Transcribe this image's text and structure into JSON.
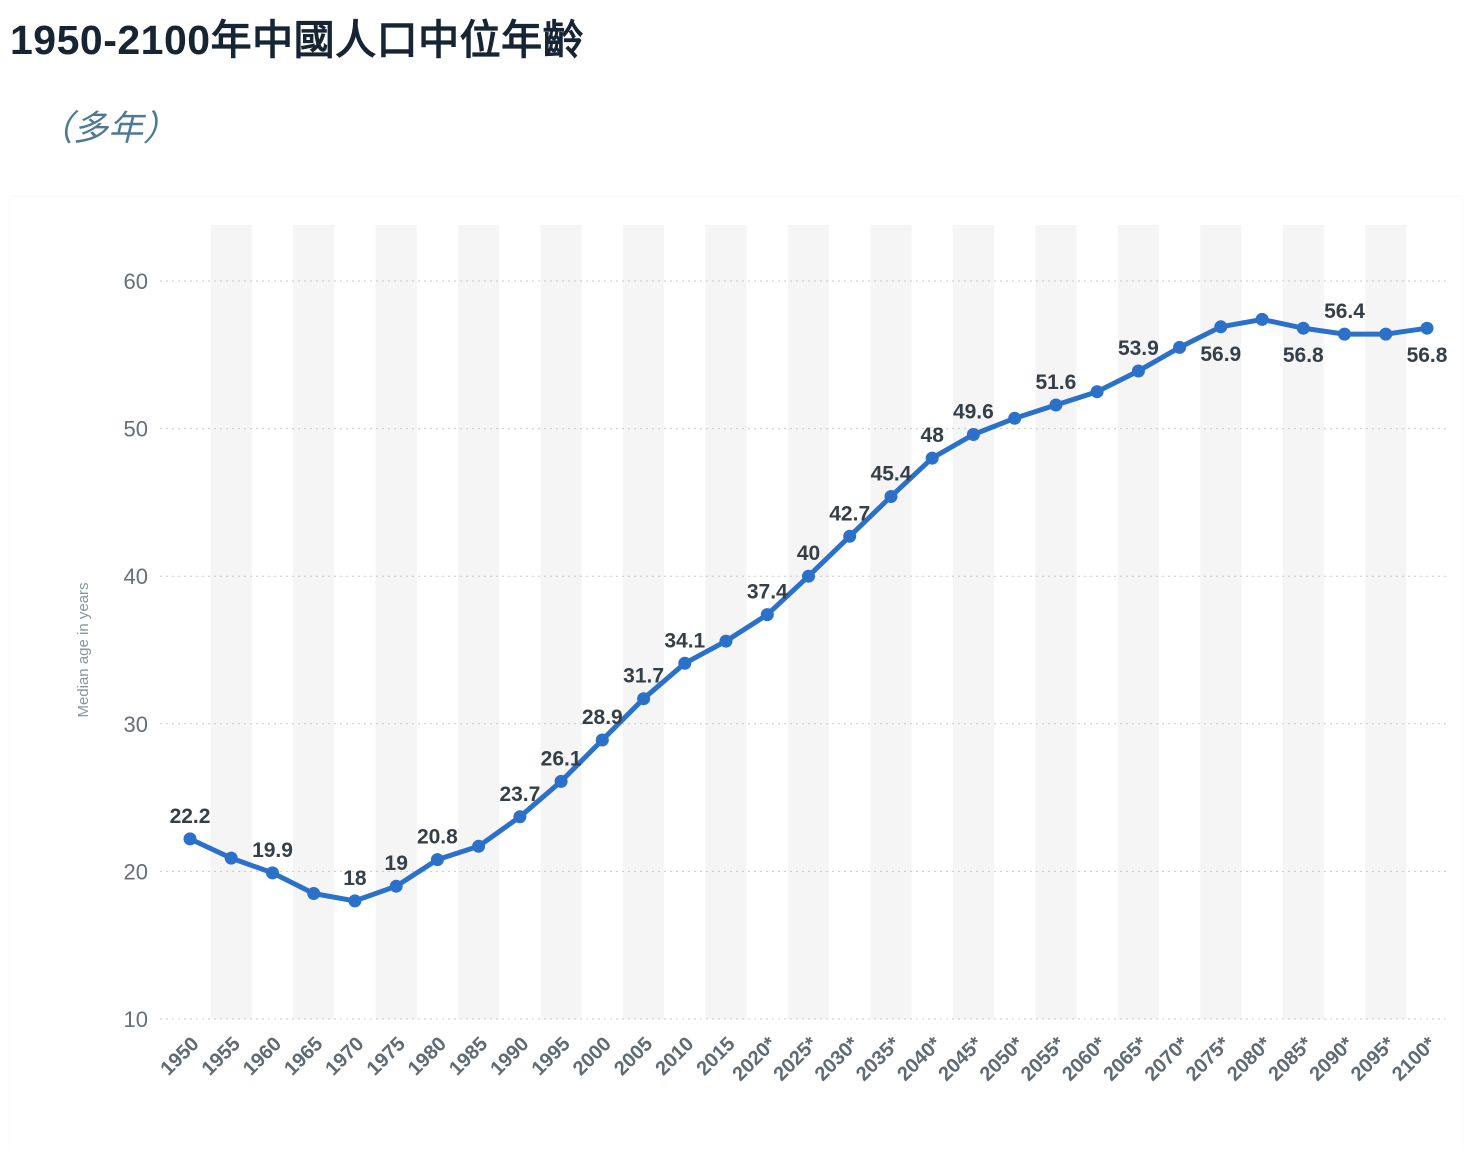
{
  "header": {
    "title": "1950-2100年中國人口中位年齡",
    "subtitle": "（多年）"
  },
  "chart_data": {
    "type": "line",
    "title": "1950-2100年中國人口中位年齡",
    "subtitle": "（多年）",
    "xlabel": "",
    "ylabel": "Median age in years",
    "ylim": [
      10,
      60
    ],
    "yticks": [
      10,
      20,
      30,
      40,
      50,
      60
    ],
    "grid": "horizontal-dotted",
    "legend": "none",
    "colors": {
      "line": "#2b70c9",
      "band": "#f5f5f5",
      "grid": "#c9c9c9",
      "ytick": "#666f76",
      "xtick": "#5f6a73",
      "point_label": "#353f48"
    },
    "points": [
      {
        "year": "1950",
        "value": 22.2,
        "label": "22.2",
        "label_pos": "above"
      },
      {
        "year": "1955",
        "value": 20.9
      },
      {
        "year": "1960",
        "value": 19.9,
        "label": "19.9",
        "label_pos": "above"
      },
      {
        "year": "1965",
        "value": 18.5
      },
      {
        "year": "1970",
        "value": 18,
        "label": "18",
        "label_pos": "above"
      },
      {
        "year": "1975",
        "value": 19,
        "label": "19",
        "label_pos": "above"
      },
      {
        "year": "1980",
        "value": 20.8,
        "label": "20.8",
        "label_pos": "above"
      },
      {
        "year": "1985",
        "value": 21.7
      },
      {
        "year": "1990",
        "value": 23.7,
        "label": "23.7",
        "label_pos": "above"
      },
      {
        "year": "1995",
        "value": 26.1,
        "label": "26.1",
        "label_pos": "above"
      },
      {
        "year": "2000",
        "value": 28.9,
        "label": "28.9",
        "label_pos": "above"
      },
      {
        "year": "2005",
        "value": 31.7,
        "label": "31.7",
        "label_pos": "above"
      },
      {
        "year": "2010",
        "value": 34.1,
        "label": "34.1",
        "label_pos": "above"
      },
      {
        "year": "2015",
        "value": 35.6
      },
      {
        "year": "2020*",
        "value": 37.4,
        "label": "37.4",
        "label_pos": "above"
      },
      {
        "year": "2025*",
        "value": 40,
        "label": "40",
        "label_pos": "above"
      },
      {
        "year": "2030*",
        "value": 42.7,
        "label": "42.7",
        "label_pos": "above"
      },
      {
        "year": "2035*",
        "value": 45.4,
        "label": "45.4",
        "label_pos": "above"
      },
      {
        "year": "2040*",
        "value": 48,
        "label": "48",
        "label_pos": "above"
      },
      {
        "year": "2045*",
        "value": 49.6,
        "label": "49.6",
        "label_pos": "above"
      },
      {
        "year": "2050*",
        "value": 50.7
      },
      {
        "year": "2055*",
        "value": 51.6,
        "label": "51.6",
        "label_pos": "above"
      },
      {
        "year": "2060*",
        "value": 52.5
      },
      {
        "year": "2065*",
        "value": 53.9,
        "label": "53.9",
        "label_pos": "above"
      },
      {
        "year": "2070*",
        "value": 55.5
      },
      {
        "year": "2075*",
        "value": 56.9,
        "label": "56.9",
        "label_pos": "below"
      },
      {
        "year": "2080*",
        "value": 57.4
      },
      {
        "year": "2085*",
        "value": 56.8,
        "label": "56.8",
        "label_pos": "below"
      },
      {
        "year": "2090*",
        "value": 56.4,
        "label": "56.4",
        "label_pos": "above"
      },
      {
        "year": "2095*",
        "value": 56.4
      },
      {
        "year": "2100*",
        "value": 56.8,
        "label": "56.8",
        "label_pos": "below"
      }
    ]
  }
}
